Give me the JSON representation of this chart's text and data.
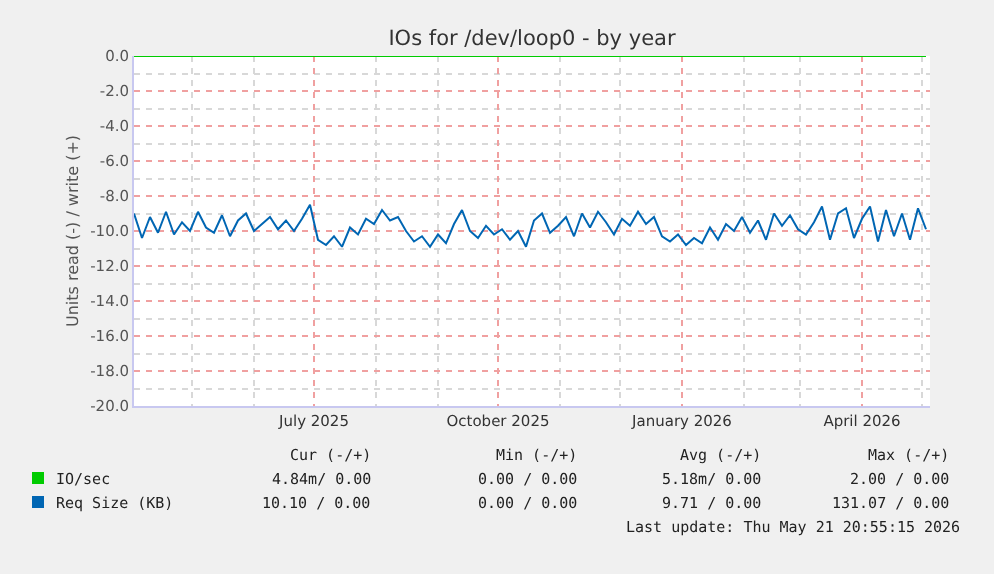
{
  "chart_data": {
    "type": "line",
    "title": "IOs for /dev/loop0 - by year",
    "ylabel": "Units read (-) / write (+)",
    "x": [
      "2025-04-02",
      "2025-04-06",
      "2025-04-10",
      "2025-04-14",
      "2025-04-18",
      "2025-04-22",
      "2025-04-26",
      "2025-04-30",
      "2025-05-04",
      "2025-05-08",
      "2025-05-12",
      "2025-05-16",
      "2025-05-20",
      "2025-05-24",
      "2025-05-28",
      "2025-06-01",
      "2025-06-05",
      "2025-06-09",
      "2025-06-13",
      "2025-06-17",
      "2025-06-21",
      "2025-06-25",
      "2025-06-29",
      "2025-07-03",
      "2025-07-07",
      "2025-07-11",
      "2025-07-15",
      "2025-07-19",
      "2025-07-23",
      "2025-07-27",
      "2025-07-31",
      "2025-08-04",
      "2025-08-08",
      "2025-08-12",
      "2025-08-16",
      "2025-08-20",
      "2025-08-24",
      "2025-08-28",
      "2025-09-01",
      "2025-09-05",
      "2025-09-09",
      "2025-09-13",
      "2025-09-17",
      "2025-09-21",
      "2025-09-25",
      "2025-09-29",
      "2025-10-03",
      "2025-10-07",
      "2025-10-11",
      "2025-10-15",
      "2025-10-19",
      "2025-10-23",
      "2025-10-27",
      "2025-10-31",
      "2025-11-04",
      "2025-11-08",
      "2025-11-12",
      "2025-11-16",
      "2025-11-20",
      "2025-11-24",
      "2025-11-28",
      "2025-12-02",
      "2025-12-06",
      "2025-12-10",
      "2025-12-14",
      "2025-12-18",
      "2025-12-22",
      "2025-12-26",
      "2025-12-30",
      "2026-01-03",
      "2026-01-07",
      "2026-01-11",
      "2026-01-15",
      "2026-01-19",
      "2026-01-23",
      "2026-01-27",
      "2026-01-31",
      "2026-02-04",
      "2026-02-08",
      "2026-02-12",
      "2026-02-16",
      "2026-02-20",
      "2026-02-24",
      "2026-02-28",
      "2026-03-04",
      "2026-03-08",
      "2026-03-12",
      "2026-03-16",
      "2026-03-20",
      "2026-03-24",
      "2026-03-28",
      "2026-04-01",
      "2026-04-05",
      "2026-04-09",
      "2026-04-13",
      "2026-04-17",
      "2026-04-21",
      "2026-04-25",
      "2026-04-29",
      "2026-05-03"
    ],
    "series": [
      {
        "name": "IO/sec",
        "color": "#00cc00",
        "x": [
          "2025-04-02",
          "2026-05-03"
        ],
        "values": [
          0,
          0
        ]
      },
      {
        "name": "Req Size (KB)",
        "color": "#0066b3",
        "values": [
          -9.0,
          -10.4,
          -9.2,
          -10.1,
          -8.9,
          -10.2,
          -9.5,
          -10.0,
          -8.9,
          -9.8,
          -10.1,
          -9.1,
          -10.3,
          -9.4,
          -9.0,
          -10.0,
          -9.6,
          -9.2,
          -9.9,
          -9.4,
          -10.0,
          -9.3,
          -8.5,
          -10.5,
          -10.8,
          -10.3,
          -10.9,
          -9.8,
          -10.2,
          -9.3,
          -9.6,
          -8.8,
          -9.4,
          -9.2,
          -10.0,
          -10.6,
          -10.3,
          -10.9,
          -10.2,
          -10.7,
          -9.6,
          -8.8,
          -10.0,
          -10.4,
          -9.7,
          -10.2,
          -9.9,
          -10.5,
          -10.0,
          -10.9,
          -9.4,
          -9.0,
          -10.1,
          -9.7,
          -9.2,
          -10.3,
          -9.0,
          -9.8,
          -8.9,
          -9.5,
          -10.2,
          -9.3,
          -9.7,
          -8.9,
          -9.6,
          -9.2,
          -10.3,
          -10.6,
          -10.2,
          -10.8,
          -10.4,
          -10.7,
          -9.8,
          -10.5,
          -9.6,
          -10.0,
          -9.2,
          -10.1,
          -9.4,
          -10.5,
          -9.0,
          -9.7,
          -9.1,
          -9.9,
          -10.2,
          -9.5,
          -8.6,
          -10.5,
          -9.0,
          -8.7,
          -10.4,
          -9.3,
          -8.6,
          -10.6,
          -8.8,
          -10.3,
          -9.0,
          -10.5,
          -8.7,
          -9.9
        ]
      }
    ],
    "xlim": [
      "2025-04-02",
      "2026-05-05"
    ],
    "xticks": [
      {
        "value": "2025-07-01",
        "label": "July 2025"
      },
      {
        "value": "2025-10-01",
        "label": "October 2025"
      },
      {
        "value": "2026-01-01",
        "label": "January 2026"
      },
      {
        "value": "2026-04-01",
        "label": "April 2026"
      }
    ],
    "ylim": [
      -20,
      0
    ],
    "yticks": [
      {
        "value": 0,
        "label": "0.0"
      },
      {
        "value": -2,
        "label": "-2.0"
      },
      {
        "value": -4,
        "label": "-4.0"
      },
      {
        "value": -6,
        "label": "-6.0"
      },
      {
        "value": -8,
        "label": "-8.0"
      },
      {
        "value": -10,
        "label": "-10.0"
      },
      {
        "value": -12,
        "label": "-12.0"
      },
      {
        "value": -14,
        "label": "-14.0"
      },
      {
        "value": -16,
        "label": "-16.0"
      },
      {
        "value": -18,
        "label": "-18.0"
      },
      {
        "value": -20,
        "label": "-20.0"
      }
    ],
    "grid": true,
    "legend": "bottom left",
    "annotations": [
      "Cur (-/+)",
      "Min (-/+)",
      "Avg (-/+)",
      "Max (-/+)",
      "4.84m/ 0.00",
      "0.00 / 0.00",
      "5.18m/ 0.00",
      "2.00 / 0.00",
      "10.10 / 0.00",
      "0.00 / 0.00",
      "9.71 / 0.00",
      "131.07 / 0.00",
      "Last update: Thu May 21 20:55:15 2026"
    ]
  }
}
